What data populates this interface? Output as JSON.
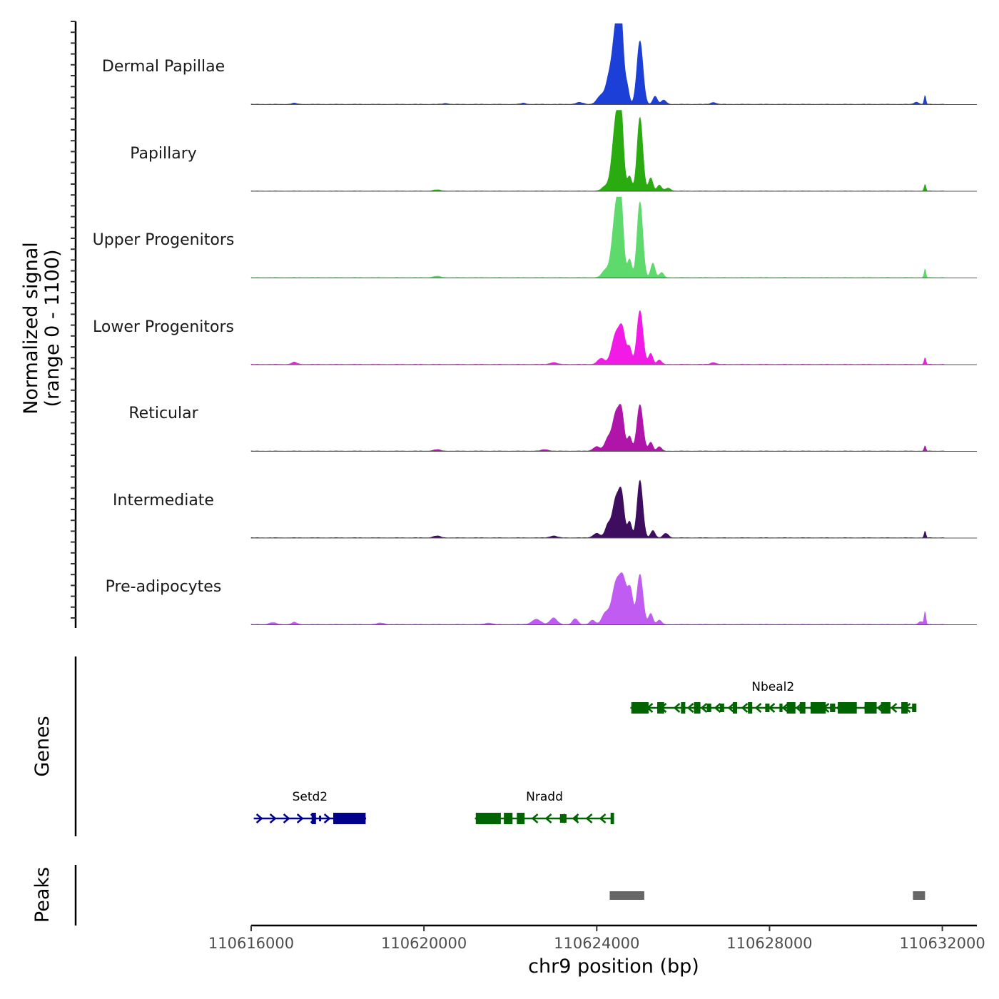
{
  "chart_data": {
    "type": "area",
    "title": "",
    "xlabel": "chr9 position (bp)",
    "ylabel": "Normalized signal\n(range 0 - 1100)",
    "ylabel_lines": [
      "Normalized signal",
      "(range 0 - 1100)"
    ],
    "ylim": [
      0,
      1100
    ],
    "chrom": "chr9",
    "xlim": [
      110616000,
      110632800
    ],
    "xticks": [
      110616000,
      110620000,
      110624000,
      110628000,
      110632000
    ],
    "xtick_labels": [
      "110616000",
      "110620000",
      "110624000",
      "110628000",
      "110632000"
    ],
    "tracks": [
      {
        "name": "Dermal Papillae",
        "color": "#1c3fd8",
        "peaks": [
          [
            110624100,
            120,
            90
          ],
          [
            110624270,
            260,
            70
          ],
          [
            110624450,
            1050,
            90
          ],
          [
            110624560,
            860,
            60
          ],
          [
            110624700,
            230,
            50
          ],
          [
            110625000,
            860,
            70
          ],
          [
            110625350,
            110,
            50
          ],
          [
            110625550,
            55,
            60
          ],
          [
            110617000,
            15,
            60
          ],
          [
            110620500,
            12,
            60
          ],
          [
            110622300,
            15,
            60
          ],
          [
            110623600,
            25,
            80
          ],
          [
            110626700,
            25,
            60
          ],
          [
            110631400,
            30,
            50
          ],
          [
            110631600,
            120,
            20
          ]
        ]
      },
      {
        "name": "Papillary",
        "color": "#2aab10",
        "peaks": [
          [
            110624200,
            60,
            80
          ],
          [
            110624450,
            950,
            90
          ],
          [
            110624560,
            820,
            60
          ],
          [
            110624760,
            200,
            50
          ],
          [
            110625000,
            1000,
            65
          ],
          [
            110625250,
            180,
            50
          ],
          [
            110625450,
            80,
            50
          ],
          [
            110625650,
            40,
            60
          ],
          [
            110620300,
            15,
            80
          ],
          [
            110631600,
            90,
            20
          ]
        ]
      },
      {
        "name": "Upper Progenitors",
        "color": "#5ed96b",
        "peaks": [
          [
            110624200,
            100,
            80
          ],
          [
            110624450,
            930,
            90
          ],
          [
            110624560,
            760,
            60
          ],
          [
            110624760,
            250,
            50
          ],
          [
            110625000,
            1030,
            65
          ],
          [
            110625300,
            200,
            50
          ],
          [
            110625500,
            70,
            50
          ],
          [
            110620300,
            20,
            80
          ],
          [
            110631600,
            120,
            20
          ]
        ]
      },
      {
        "name": "Lower Progenitors",
        "color": "#f21be6",
        "peaks": [
          [
            110624100,
            80,
            80
          ],
          [
            110624450,
            420,
            100
          ],
          [
            110624600,
            380,
            70
          ],
          [
            110624760,
            220,
            50
          ],
          [
            110625000,
            730,
            70
          ],
          [
            110625250,
            150,
            50
          ],
          [
            110625450,
            60,
            50
          ],
          [
            110617000,
            30,
            60
          ],
          [
            110623000,
            25,
            80
          ],
          [
            110626700,
            25,
            60
          ],
          [
            110631600,
            90,
            20
          ]
        ]
      },
      {
        "name": "Reticular",
        "color": "#b015a9",
        "peaks": [
          [
            110624000,
            60,
            80
          ],
          [
            110624250,
            150,
            70
          ],
          [
            110624450,
            520,
            90
          ],
          [
            110624580,
            400,
            60
          ],
          [
            110624760,
            200,
            50
          ],
          [
            110625000,
            630,
            70
          ],
          [
            110625250,
            120,
            50
          ],
          [
            110625450,
            60,
            50
          ],
          [
            110620300,
            20,
            80
          ],
          [
            110622800,
            20,
            80
          ],
          [
            110631600,
            70,
            20
          ]
        ]
      },
      {
        "name": "Intermediate",
        "color": "#3e0d5f",
        "peaks": [
          [
            110624000,
            60,
            80
          ],
          [
            110624250,
            150,
            60
          ],
          [
            110624450,
            540,
            90
          ],
          [
            110624580,
            450,
            60
          ],
          [
            110624760,
            220,
            50
          ],
          [
            110625000,
            780,
            65
          ],
          [
            110625300,
            100,
            50
          ],
          [
            110625600,
            60,
            60
          ],
          [
            110620300,
            25,
            80
          ],
          [
            110623000,
            25,
            80
          ],
          [
            110631600,
            90,
            20
          ]
        ]
      },
      {
        "name": "Pre-adipocytes",
        "color": "#c05cf2",
        "peaks": [
          [
            110622600,
            70,
            100
          ],
          [
            110623000,
            90,
            80
          ],
          [
            110623500,
            80,
            60
          ],
          [
            110623900,
            60,
            60
          ],
          [
            110624200,
            150,
            80
          ],
          [
            110624450,
            560,
            100
          ],
          [
            110624620,
            520,
            80
          ],
          [
            110624780,
            440,
            60
          ],
          [
            110625000,
            680,
            70
          ],
          [
            110625250,
            150,
            50
          ],
          [
            110625450,
            60,
            50
          ],
          [
            110616500,
            25,
            80
          ],
          [
            110617000,
            30,
            60
          ],
          [
            110619000,
            20,
            80
          ],
          [
            110621500,
            20,
            80
          ],
          [
            110631500,
            40,
            50
          ],
          [
            110631600,
            170,
            20
          ]
        ]
      }
    ],
    "genes": [
      {
        "name": "Setd2",
        "strand": "+",
        "color": "#00008b",
        "start": 110616060,
        "end": 110618660
      },
      {
        "name": "Nradd",
        "strand": "-",
        "color": "#006400",
        "start": 110621180,
        "end": 110624400
      },
      {
        "name": "Nbeal2",
        "strand": "-",
        "color": "#006400",
        "start": 110624780,
        "end": 110631380
      }
    ],
    "peak_regions": [
      {
        "start": 110624300,
        "end": 110625100
      },
      {
        "start": 110631320,
        "end": 110631600
      }
    ],
    "panel_labels": {
      "genes": "Genes",
      "peaks": "Peaks"
    }
  }
}
